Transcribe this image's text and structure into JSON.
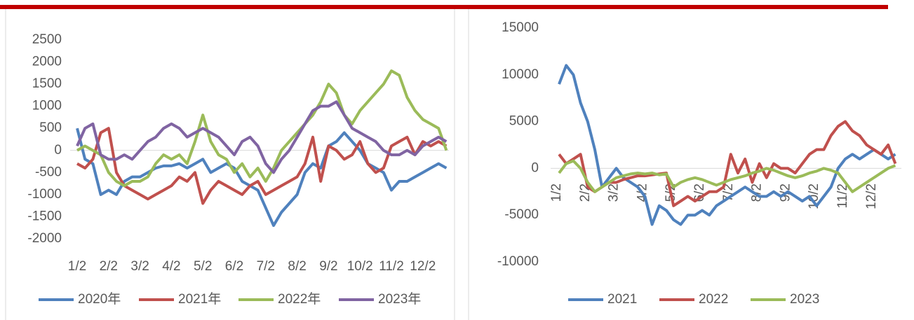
{
  "chart_data": [
    {
      "type": "line",
      "categories": [
        "1/2",
        null,
        null,
        null,
        "2/2",
        null,
        null,
        null,
        "3/2",
        null,
        null,
        null,
        "4/2",
        null,
        null,
        null,
        "5/2",
        null,
        null,
        null,
        "6/2",
        null,
        null,
        null,
        "7/2",
        null,
        null,
        null,
        "8/2",
        null,
        null,
        null,
        "9/2",
        null,
        null,
        null,
        "10/2",
        null,
        null,
        null,
        "11/2",
        null,
        null,
        null,
        "12/2",
        null,
        null,
        null
      ],
      "ylim": [
        -2000,
        2500
      ],
      "yticks": [
        -2000,
        -1500,
        -1000,
        -500,
        0,
        500,
        1000,
        1500,
        2000,
        2500
      ],
      "legend": "bottom",
      "series": [
        {
          "name": "2020年",
          "color": "#4f81bd",
          "values": [
            500,
            -200,
            -300,
            -1000,
            -900,
            -1000,
            -700,
            -600,
            -600,
            -500,
            -400,
            -350,
            -350,
            -300,
            -400,
            -300,
            -200,
            -500,
            -400,
            -300,
            -400,
            -700,
            -800,
            -900,
            -1300,
            -1700,
            -1400,
            -1200,
            -1000,
            -500,
            -300,
            -400,
            100,
            200,
            400,
            200,
            0,
            -300,
            -400,
            -500,
            -900,
            -700,
            -700,
            -600,
            -500,
            -400,
            -300,
            -400
          ]
        },
        {
          "name": "2021年",
          "color": "#c0504d",
          "values": [
            -300,
            -400,
            -200,
            400,
            500,
            -500,
            -800,
            -900,
            -1000,
            -1100,
            -1000,
            -900,
            -800,
            -600,
            -700,
            -500,
            -1200,
            -900,
            -700,
            -800,
            -900,
            -1000,
            -800,
            -700,
            -1000,
            -900,
            -800,
            -700,
            -600,
            -300,
            300,
            -700,
            100,
            0,
            -200,
            -100,
            200,
            -300,
            -500,
            -400,
            100,
            200,
            300,
            -100,
            200,
            100,
            200,
            100
          ]
        },
        {
          "name": "2022年",
          "color": "#9bbb59",
          "values": [
            0,
            100,
            0,
            -100,
            -500,
            -700,
            -800,
            -700,
            -700,
            -600,
            -300,
            -100,
            -200,
            -100,
            -300,
            200,
            800,
            200,
            -100,
            -200,
            -500,
            -300,
            -600,
            -400,
            -700,
            -400,
            0,
            200,
            400,
            600,
            800,
            1100,
            1500,
            1300,
            800,
            600,
            900,
            1100,
            1300,
            1500,
            1800,
            1700,
            1200,
            900,
            700,
            600,
            500,
            0
          ]
        },
        {
          "name": "2023年",
          "color": "#8064a2",
          "values": [
            100,
            500,
            600,
            -100,
            -200,
            -200,
            -100,
            -200,
            0,
            200,
            300,
            500,
            600,
            500,
            300,
            400,
            500,
            400,
            300,
            100,
            -100,
            200,
            300,
            100,
            -300,
            -500,
            -200,
            0,
            300,
            600,
            900,
            1000,
            1000,
            1100,
            800,
            500,
            400,
            300,
            200,
            0,
            -100,
            -100,
            0,
            -100,
            100,
            200,
            300,
            200
          ]
        }
      ]
    },
    {
      "type": "line",
      "categories": [
        "1/2",
        null,
        null,
        null,
        "2/2",
        null,
        null,
        null,
        "3/2",
        null,
        null,
        null,
        "4/2",
        null,
        null,
        null,
        "5/2",
        null,
        null,
        null,
        "6/2",
        null,
        null,
        null,
        "7/2",
        null,
        null,
        null,
        "8/2",
        null,
        null,
        null,
        "9/2",
        null,
        null,
        null,
        "10/2",
        null,
        null,
        null,
        "11/2",
        null,
        null,
        null,
        "12/2",
        null,
        null,
        null
      ],
      "ylim": [
        -10000,
        15000
      ],
      "yticks": [
        -10000,
        -5000,
        0,
        5000,
        10000,
        15000
      ],
      "legend": "bottom",
      "series": [
        {
          "name": "2021",
          "color": "#4f81bd",
          "values": [
            9000,
            11000,
            10000,
            7000,
            5000,
            2000,
            -2000,
            -1000,
            0,
            -1000,
            -1500,
            -2000,
            -3000,
            -6000,
            -4000,
            -4500,
            -5500,
            -6000,
            -5000,
            -5000,
            -4500,
            -5000,
            -4000,
            -3500,
            -3000,
            -2500,
            -2000,
            -2500,
            -3000,
            -3000,
            -2500,
            -3000,
            -2500,
            -3000,
            -3500,
            -3000,
            -4000,
            -3000,
            -2000,
            0,
            1000,
            1500,
            1000,
            1500,
            2000,
            1500,
            1000,
            1500
          ]
        },
        {
          "name": "2022",
          "color": "#c0504d",
          "values": [
            1500,
            500,
            1000,
            1500,
            -2000,
            -2500,
            -2000,
            -1500,
            -1500,
            -1200,
            -1000,
            -800,
            -800,
            -700,
            -600,
            -500,
            -4000,
            -3500,
            -3000,
            -3500,
            -3000,
            -2500,
            -2500,
            -2000,
            1500,
            -500,
            1000,
            -1500,
            500,
            -1000,
            500,
            0,
            0,
            -500,
            500,
            1500,
            2000,
            2000,
            3500,
            4500,
            5000,
            4000,
            3500,
            2500,
            2000,
            1500,
            2500,
            500
          ]
        },
        {
          "name": "2023",
          "color": "#9bbb59",
          "values": [
            -500,
            500,
            800,
            0,
            -1500,
            -2500,
            -2000,
            -1500,
            -1000,
            -800,
            -600,
            -500,
            -600,
            -500,
            -700,
            -600,
            -2000,
            -1500,
            -1200,
            -1000,
            -1200,
            -1500,
            -1800,
            -1500,
            -1200,
            -1000,
            -800,
            -500,
            -300,
            0,
            -200,
            -500,
            -800,
            -1000,
            -800,
            -500,
            -300,
            0,
            -200,
            -500,
            -1500,
            -2500,
            -2000,
            -1500,
            -1000,
            -500,
            0,
            300
          ]
        }
      ]
    }
  ]
}
